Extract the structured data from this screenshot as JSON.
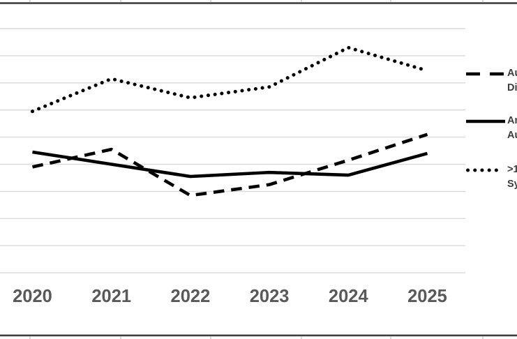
{
  "chart_data": {
    "type": "line",
    "title": "",
    "xlabel": "",
    "ylabel": "",
    "x_labels": [
      "2020",
      "2021",
      "2022",
      "2023",
      "2024",
      "2025"
    ],
    "y_axis": {
      "labels_visible": false,
      "gridline_count": 10,
      "estimated_scale": "values estimated in gridline units (1 gridline interval = 10); y-axis labels cropped out of screenshot",
      "ylim": [
        0,
        90
      ]
    },
    "grid": "horizontal-only",
    "legend_position": "right",
    "legend_truncated": true,
    "series": [
      {
        "legend_lines": [
          "Au",
          "Di"
        ],
        "line_style": "dashed",
        "color": "#000000",
        "values": [
          39,
          45.5,
          28.5,
          32.5,
          41.5,
          51
        ]
      },
      {
        "legend_lines": [
          "An",
          "Au"
        ],
        "line_style": "solid",
        "color": "#000000",
        "values": [
          44.5,
          40,
          35.5,
          37,
          36,
          44
        ]
      },
      {
        "legend_lines": [
          ">1",
          "Sy"
        ],
        "line_style": "dotted",
        "color": "#000000",
        "values": [
          59.5,
          71.5,
          64.5,
          68.5,
          83,
          74.5
        ]
      }
    ]
  },
  "colors": {
    "background": "#ffffff",
    "gridline": "#d9d9d9",
    "frame_border": "#3f3f3f",
    "tick_stub": "#cfcfcf",
    "axis_label": "#595959",
    "legend_text": "#3d3d3d",
    "series": "#000000"
  }
}
